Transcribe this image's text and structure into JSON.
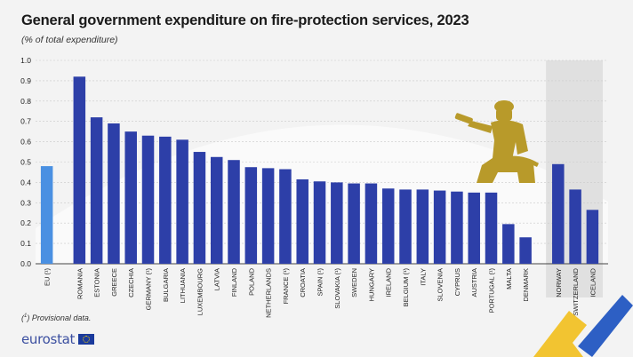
{
  "title": "General government expenditure on fire-protection services, 2023",
  "subtitle": "(% of total expenditure)",
  "footnote_mark": "1",
  "footnote_text": "Provisional data.",
  "logo_text": "eurostat",
  "colors": {
    "eu": "#4a90e2",
    "country": "#2d3fa8",
    "highlight_band": "#e0e0e0",
    "background": "#f3f3f3",
    "firefighter": "#b89a2a"
  },
  "icons": [
    "firefighter-icon",
    "eu-flag-icon"
  ],
  "chart_data": {
    "type": "bar",
    "title": "General government expenditure on fire-protection services, 2023",
    "ylabel": "",
    "xlabel": "",
    "ylim": [
      0,
      1.0
    ],
    "yticks": [
      "0.0",
      "0.1",
      "0.2",
      "0.3",
      "0.4",
      "0.5",
      "0.6",
      "0.7",
      "0.8",
      "0.9",
      "1.0"
    ],
    "grid": true,
    "groups": [
      {
        "group": "eu",
        "categories": [
          "EU (¹)"
        ],
        "values": [
          0.48
        ]
      },
      {
        "group": "members",
        "categories": [
          "ROMANIA",
          "ESTONIA",
          "GREECE",
          "CZECHIA",
          "GERMANY (¹)",
          "BULGARIA",
          "LITHUANIA",
          "LUXEMBOURG",
          "LATVIA",
          "FINLAND",
          "POLAND",
          "NETHERLANDS",
          "FRANCE (¹)",
          "CROATIA",
          "SPAIN (¹)",
          "SLOVAKIA (¹)",
          "SWEDEN",
          "HUNGARY",
          "IRELAND",
          "BELGIUM (¹)",
          "ITALY",
          "SLOVENIA",
          "CYPRUS",
          "AUSTRIA",
          "PORTUGAL (¹)",
          "MALTA",
          "DENMARK"
        ],
        "values": [
          0.92,
          0.72,
          0.69,
          0.65,
          0.63,
          0.625,
          0.61,
          0.55,
          0.525,
          0.51,
          0.475,
          0.47,
          0.465,
          0.415,
          0.405,
          0.4,
          0.395,
          0.395,
          0.37,
          0.365,
          0.365,
          0.36,
          0.355,
          0.35,
          0.35,
          0.195,
          0.13
        ]
      },
      {
        "group": "efta",
        "categories": [
          "NORWAY",
          "SWITZERLAND",
          "ICELAND"
        ],
        "values": [
          0.49,
          0.365,
          0.265
        ]
      }
    ]
  }
}
